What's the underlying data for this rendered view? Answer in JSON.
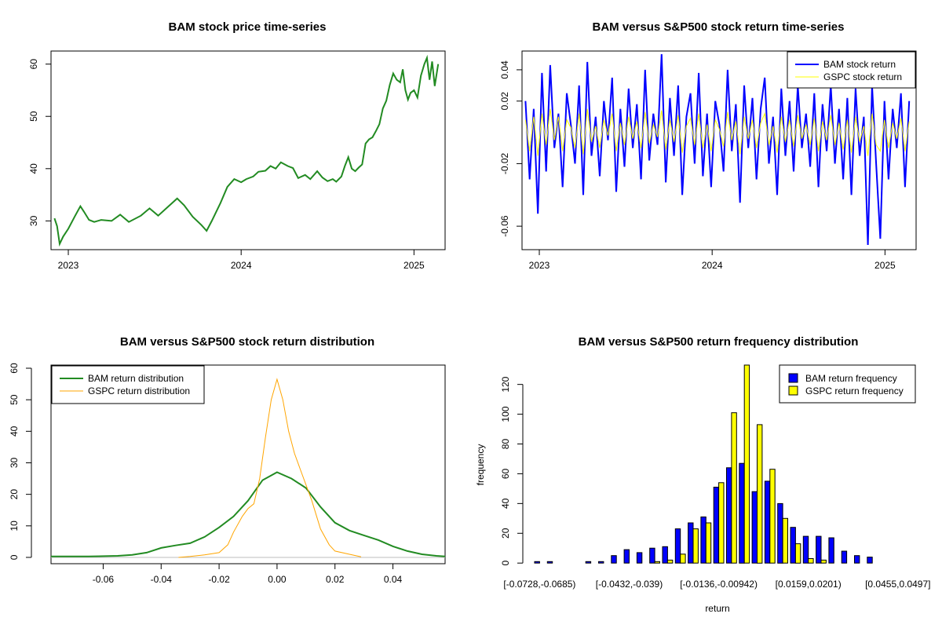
{
  "colors": {
    "bam_price": "#228B22",
    "bam_return": "#0000FF",
    "gspc_return": "#FFFF00",
    "bam_density": "#228B22",
    "gspc_density": "#FFA500",
    "bam_bar": "#0000FF",
    "gspc_bar": "#FFFF00",
    "zero_line": "#BEBEBE"
  },
  "chart_data": [
    {
      "type": "line",
      "title": "BAM stock price time-series",
      "xlabel": "",
      "ylabel": "",
      "x_ticks": [
        "2023",
        "2024",
        "2025"
      ],
      "x_tick_values": [
        2023.0,
        2024.0,
        2025.0
      ],
      "xlim": [
        2022.9,
        2025.18
      ],
      "y_ticks": [
        "30",
        "40",
        "50",
        "60"
      ],
      "y_tick_values": [
        30,
        40,
        50,
        60
      ],
      "ylim": [
        24.5,
        62.5
      ],
      "series": [
        {
          "name": "BAM",
          "points": [
            [
              2022.92,
              30.5
            ],
            [
              2022.935,
              29.0
            ],
            [
              2022.95,
              25.6
            ],
            [
              2022.97,
              27.0
            ],
            [
              2023.0,
              28.5
            ],
            [
              2023.04,
              31.0
            ],
            [
              2023.07,
              32.8
            ],
            [
              2023.09,
              31.8
            ],
            [
              2023.12,
              30.2
            ],
            [
              2023.15,
              29.8
            ],
            [
              2023.19,
              30.2
            ],
            [
              2023.25,
              30.0
            ],
            [
              2023.3,
              31.2
            ],
            [
              2023.35,
              29.8
            ],
            [
              2023.42,
              31.0
            ],
            [
              2023.47,
              32.4
            ],
            [
              2023.52,
              31.0
            ],
            [
              2023.58,
              32.8
            ],
            [
              2023.63,
              34.3
            ],
            [
              2023.67,
              33.0
            ],
            [
              2023.72,
              30.8
            ],
            [
              2023.77,
              29.2
            ],
            [
              2023.8,
              28.1
            ],
            [
              2023.83,
              30.0
            ],
            [
              2023.88,
              33.4
            ],
            [
              2023.92,
              36.5
            ],
            [
              2023.96,
              38.0
            ],
            [
              2024.0,
              37.4
            ],
            [
              2024.03,
              38.0
            ],
            [
              2024.07,
              38.5
            ],
            [
              2024.1,
              39.4
            ],
            [
              2024.14,
              39.6
            ],
            [
              2024.17,
              40.5
            ],
            [
              2024.2,
              40.0
            ],
            [
              2024.23,
              41.2
            ],
            [
              2024.27,
              40.5
            ],
            [
              2024.3,
              40.1
            ],
            [
              2024.33,
              38.2
            ],
            [
              2024.37,
              38.8
            ],
            [
              2024.4,
              38.0
            ],
            [
              2024.44,
              39.5
            ],
            [
              2024.47,
              38.3
            ],
            [
              2024.5,
              37.6
            ],
            [
              2024.53,
              38.0
            ],
            [
              2024.55,
              37.5
            ],
            [
              2024.58,
              38.5
            ],
            [
              2024.6,
              40.5
            ],
            [
              2024.62,
              42.2
            ],
            [
              2024.64,
              40.0
            ],
            [
              2024.66,
              39.5
            ],
            [
              2024.68,
              40.2
            ],
            [
              2024.7,
              40.8
            ],
            [
              2024.72,
              44.8
            ],
            [
              2024.74,
              45.6
            ],
            [
              2024.76,
              46.0
            ],
            [
              2024.78,
              47.2
            ],
            [
              2024.8,
              48.5
            ],
            [
              2024.82,
              51.5
            ],
            [
              2024.84,
              53.0
            ],
            [
              2024.86,
              56.0
            ],
            [
              2024.88,
              58.2
            ],
            [
              2024.9,
              57.0
            ],
            [
              2024.92,
              56.5
            ],
            [
              2024.935,
              59.0
            ],
            [
              2024.95,
              55.0
            ],
            [
              2024.965,
              53.2
            ],
            [
              2024.98,
              54.5
            ],
            [
              2025.0,
              55.0
            ],
            [
              2025.02,
              53.6
            ],
            [
              2025.04,
              57.8
            ],
            [
              2025.06,
              60.0
            ],
            [
              2025.075,
              61.2
            ],
            [
              2025.09,
              57.0
            ],
            [
              2025.105,
              60.5
            ],
            [
              2025.12,
              55.8
            ],
            [
              2025.14,
              60.0
            ]
          ]
        }
      ]
    },
    {
      "type": "line",
      "title": "BAM versus S&P500 stock return time-series",
      "xlabel": "",
      "ylabel": "",
      "x_ticks": [
        "2023",
        "2024",
        "2025"
      ],
      "x_tick_values": [
        2023.0,
        2024.0,
        2025.0
      ],
      "xlim": [
        2022.9,
        2025.18
      ],
      "y_ticks": [
        "-0.06",
        "-0.02",
        "0.02",
        "0.04"
      ],
      "y_tick_values": [
        -0.06,
        -0.02,
        0.02,
        0.04
      ],
      "ylim": [
        -0.075,
        0.052
      ],
      "series": [
        {
          "name": "BAM stock return",
          "x_start": 2022.92,
          "x_end": 2025.14,
          "values": [
            0.02,
            -0.03,
            0.015,
            -0.052,
            0.038,
            -0.025,
            0.043,
            -0.01,
            0.012,
            -0.035,
            0.025,
            0.005,
            -0.02,
            0.03,
            -0.04,
            0.045,
            -0.015,
            0.01,
            -0.028,
            0.02,
            -0.005,
            0.035,
            -0.038,
            0.015,
            -0.022,
            0.028,
            -0.01,
            0.018,
            -0.03,
            0.04,
            -0.018,
            0.012,
            -0.008,
            0.05,
            -0.032,
            0.022,
            -0.015,
            0.03,
            -0.04,
            0.01,
            0.025,
            -0.02,
            0.038,
            -0.028,
            0.012,
            -0.035,
            0.02,
            0.005,
            -0.025,
            0.04,
            -0.012,
            0.018,
            -0.045,
            0.03,
            -0.01,
            0.022,
            -0.03,
            0.015,
            0.035,
            -0.02,
            0.01,
            -0.04,
            0.028,
            -0.015,
            0.02,
            -0.025,
            0.03,
            -0.01,
            0.012,
            -0.022,
            0.025,
            -0.035,
            0.018,
            -0.012,
            0.03,
            -0.02,
            0.015,
            -0.03,
            0.022,
            -0.04,
            0.028,
            -0.015,
            0.01,
            -0.072,
            0.03,
            -0.02,
            -0.068,
            0.02,
            -0.03,
            0.015,
            -0.01,
            0.025,
            -0.035,
            0.02
          ],
          "y_range": [
            -0.072,
            0.05
          ]
        },
        {
          "name": "GSPC stock return",
          "x_start": 2022.92,
          "x_end": 2025.14,
          "values": [
            0.008,
            -0.012,
            0.01,
            -0.015,
            0.012,
            -0.008,
            0.015,
            -0.005,
            0.01,
            -0.012,
            0.008,
            0.003,
            -0.01,
            0.012,
            -0.014,
            0.015,
            -0.006,
            0.004,
            -0.01,
            0.008,
            -0.002,
            0.012,
            -0.012,
            0.006,
            -0.008,
            0.01,
            -0.004,
            0.007,
            -0.01,
            0.013,
            -0.007,
            0.005,
            -0.003,
            0.014,
            -0.011,
            0.008,
            -0.006,
            0.011,
            -0.013,
            0.004,
            0.009,
            -0.008,
            0.012,
            -0.01,
            0.005,
            -0.012,
            0.008,
            0.002,
            -0.009,
            0.013,
            -0.005,
            0.007,
            -0.014,
            0.01,
            -0.004,
            0.008,
            -0.01,
            0.006,
            0.012,
            -0.008,
            0.004,
            -0.013,
            0.01,
            -0.006,
            0.008,
            -0.009,
            0.011,
            -0.004,
            0.005,
            -0.008,
            0.009,
            -0.012,
            0.007,
            -0.005,
            0.011,
            -0.008,
            0.006,
            -0.011,
            0.008,
            -0.013,
            0.01,
            -0.006,
            0.004,
            -0.015,
            0.012,
            -0.008,
            -0.012,
            0.008,
            -0.01,
            0.006,
            -0.004,
            0.009,
            -0.012,
            0.007
          ],
          "y_range": [
            -0.02,
            0.02
          ]
        }
      ],
      "legend": [
        "BAM stock return",
        "GSPC stock return"
      ],
      "legend_position": "top-right"
    },
    {
      "type": "line",
      "title": "BAM versus S&P500 stock return distribution",
      "xlabel": "",
      "ylabel": "",
      "x_ticks": [
        "-0.06",
        "-0.04",
        "-0.02",
        "0.00",
        "0.02",
        "0.04"
      ],
      "x_tick_values": [
        -0.06,
        -0.04,
        -0.02,
        0.0,
        0.02,
        0.04
      ],
      "xlim": [
        -0.078,
        0.058
      ],
      "y_ticks": [
        "0",
        "10",
        "20",
        "30",
        "40",
        "50",
        "60"
      ],
      "y_tick_values": [
        0,
        10,
        20,
        30,
        40,
        50,
        60
      ],
      "ylim": [
        -2,
        61
      ],
      "series": [
        {
          "name": "BAM return distribution",
          "points": [
            [
              -0.078,
              0.3
            ],
            [
              -0.065,
              0.3
            ],
            [
              -0.055,
              0.5
            ],
            [
              -0.05,
              0.8
            ],
            [
              -0.045,
              1.5
            ],
            [
              -0.04,
              3.0
            ],
            [
              -0.035,
              3.8
            ],
            [
              -0.03,
              4.5
            ],
            [
              -0.025,
              6.5
            ],
            [
              -0.02,
              9.5
            ],
            [
              -0.015,
              13.0
            ],
            [
              -0.01,
              18.0
            ],
            [
              -0.005,
              24.5
            ],
            [
              0.0,
              27.0
            ],
            [
              0.005,
              25.0
            ],
            [
              0.01,
              22.0
            ],
            [
              0.015,
              16.0
            ],
            [
              0.02,
              11.0
            ],
            [
              0.025,
              8.5
            ],
            [
              0.03,
              7.0
            ],
            [
              0.035,
              5.5
            ],
            [
              0.04,
              3.5
            ],
            [
              0.045,
              2.0
            ],
            [
              0.05,
              1.0
            ],
            [
              0.055,
              0.5
            ],
            [
              0.058,
              0.3
            ]
          ]
        },
        {
          "name": "GSPC return distribution",
          "points": [
            [
              -0.034,
              0.0
            ],
            [
              -0.03,
              0.3
            ],
            [
              -0.025,
              0.8
            ],
            [
              -0.02,
              1.5
            ],
            [
              -0.017,
              4.0
            ],
            [
              -0.015,
              8.0
            ],
            [
              -0.012,
              13.0
            ],
            [
              -0.01,
              15.5
            ],
            [
              -0.008,
              17.0
            ],
            [
              -0.006,
              25.0
            ],
            [
              -0.004,
              38.0
            ],
            [
              -0.002,
              50.0
            ],
            [
              0.0,
              56.5
            ],
            [
              0.002,
              50.0
            ],
            [
              0.004,
              40.0
            ],
            [
              0.006,
              33.0
            ],
            [
              0.008,
              28.0
            ],
            [
              0.01,
              23.0
            ],
            [
              0.012,
              18.0
            ],
            [
              0.015,
              9.0
            ],
            [
              0.018,
              4.0
            ],
            [
              0.02,
              2.0
            ],
            [
              0.025,
              1.0
            ],
            [
              0.029,
              0.2
            ]
          ]
        }
      ],
      "legend": [
        "BAM return distribution",
        "GSPC return distribution"
      ],
      "legend_position": "top-left"
    },
    {
      "type": "bar",
      "title": "BAM versus S&P500 return frequency distribution",
      "xlabel": "return",
      "ylabel": "frequency",
      "x_tick_labels": [
        "[-0.0728,-0.0685)",
        "[-0.0432,-0.039)",
        "[-0.0136,-0.00942)",
        "[0.0159,0.0201)",
        "[0.0455,0.0497]"
      ],
      "x_tick_bins": [
        0,
        7,
        14,
        21,
        28
      ],
      "y_ticks": [
        "0",
        "20",
        "40",
        "60",
        "80",
        "100",
        "120"
      ],
      "y_tick_values": [
        0,
        20,
        40,
        60,
        80,
        100,
        120
      ],
      "ylim": [
        -2,
        133
      ],
      "series": [
        {
          "name": "BAM return frequency",
          "values": [
            1,
            1,
            0,
            0,
            1,
            1,
            5,
            9,
            7,
            10,
            11,
            23,
            27,
            31,
            51,
            64,
            67,
            48,
            55,
            40,
            24,
            18,
            18,
            17,
            8,
            5,
            4,
            0
          ]
        },
        {
          "name": "GSPC return frequency",
          "values": [
            0,
            0,
            0,
            0,
            0,
            0,
            0,
            0,
            0,
            1,
            2,
            6,
            23,
            27,
            54,
            101,
            133,
            93,
            63,
            30,
            13,
            3,
            2,
            0,
            0,
            0,
            0,
            0
          ]
        }
      ],
      "legend": [
        "BAM return frequency",
        "GSPC return frequency"
      ],
      "legend_position": "top-right"
    }
  ]
}
